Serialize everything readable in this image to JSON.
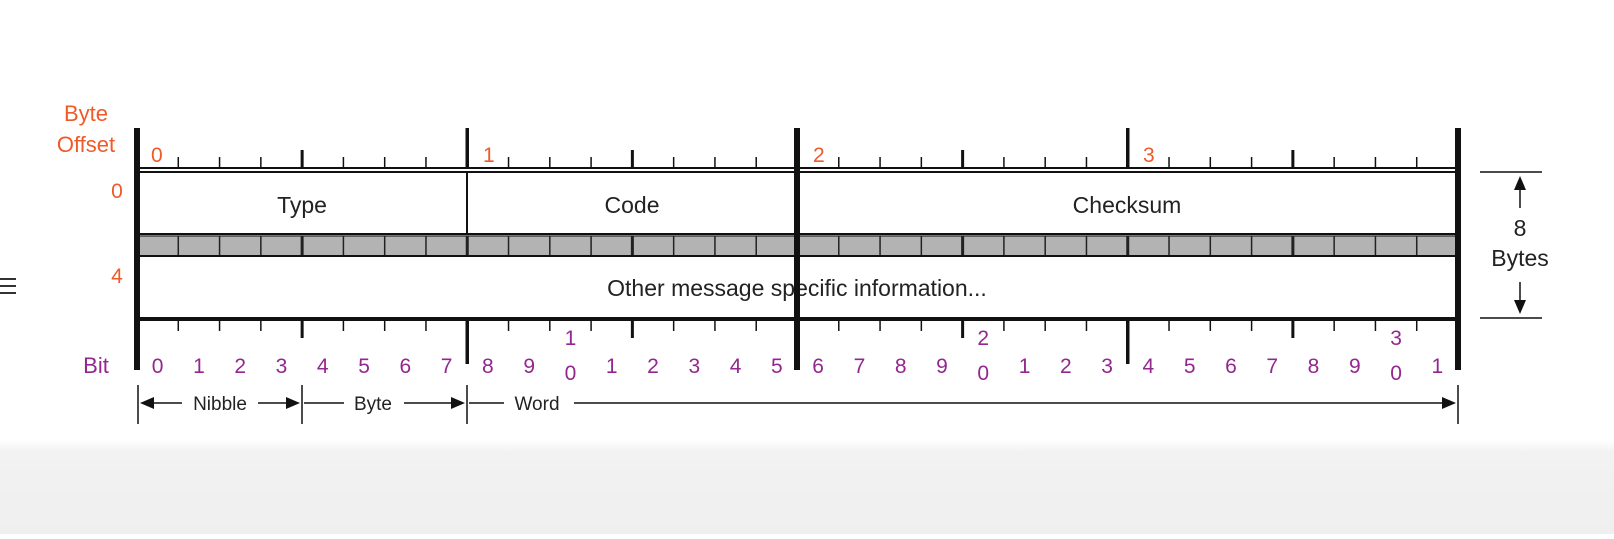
{
  "header": {
    "byte_offset_line1": "Byte",
    "byte_offset_line2": "Offset",
    "bit_label": "Bit"
  },
  "byte_offsets": [
    "0",
    "1",
    "2",
    "3"
  ],
  "row_offsets": [
    "0",
    "4"
  ],
  "fields": {
    "type": "Type",
    "code": "Code",
    "checksum": "Checksum",
    "other": "Other message specific information..."
  },
  "bit_numbers": [
    {
      "top": "0",
      "bottom": ""
    },
    {
      "top": "1",
      "bottom": ""
    },
    {
      "top": "2",
      "bottom": ""
    },
    {
      "top": "3",
      "bottom": ""
    },
    {
      "top": "4",
      "bottom": ""
    },
    {
      "top": "5",
      "bottom": ""
    },
    {
      "top": "6",
      "bottom": ""
    },
    {
      "top": "7",
      "bottom": ""
    },
    {
      "top": "8",
      "bottom": ""
    },
    {
      "top": "9",
      "bottom": ""
    },
    {
      "top": "1",
      "bottom": "0"
    },
    {
      "top": "1",
      "bottom": ""
    },
    {
      "top": "2",
      "bottom": ""
    },
    {
      "top": "3",
      "bottom": ""
    },
    {
      "top": "4",
      "bottom": ""
    },
    {
      "top": "5",
      "bottom": ""
    },
    {
      "top": "6",
      "bottom": ""
    },
    {
      "top": "7",
      "bottom": ""
    },
    {
      "top": "8",
      "bottom": ""
    },
    {
      "top": "9",
      "bottom": ""
    },
    {
      "top": "2",
      "bottom": "0"
    },
    {
      "top": "1",
      "bottom": ""
    },
    {
      "top": "2",
      "bottom": ""
    },
    {
      "top": "3",
      "bottom": ""
    },
    {
      "top": "4",
      "bottom": ""
    },
    {
      "top": "5",
      "bottom": ""
    },
    {
      "top": "6",
      "bottom": ""
    },
    {
      "top": "7",
      "bottom": ""
    },
    {
      "top": "8",
      "bottom": ""
    },
    {
      "top": "9",
      "bottom": ""
    },
    {
      "top": "3",
      "bottom": "0"
    },
    {
      "top": "1",
      "bottom": ""
    }
  ],
  "legend": {
    "nibble": "Nibble",
    "byte": "Byte",
    "word": "Word"
  },
  "size": {
    "value": "8",
    "unit": "Bytes"
  },
  "colors": {
    "offset_label": "#f05a28",
    "bit_label": "#93278f",
    "lines": "#111111",
    "separator_fill": "#b3b3b3"
  }
}
